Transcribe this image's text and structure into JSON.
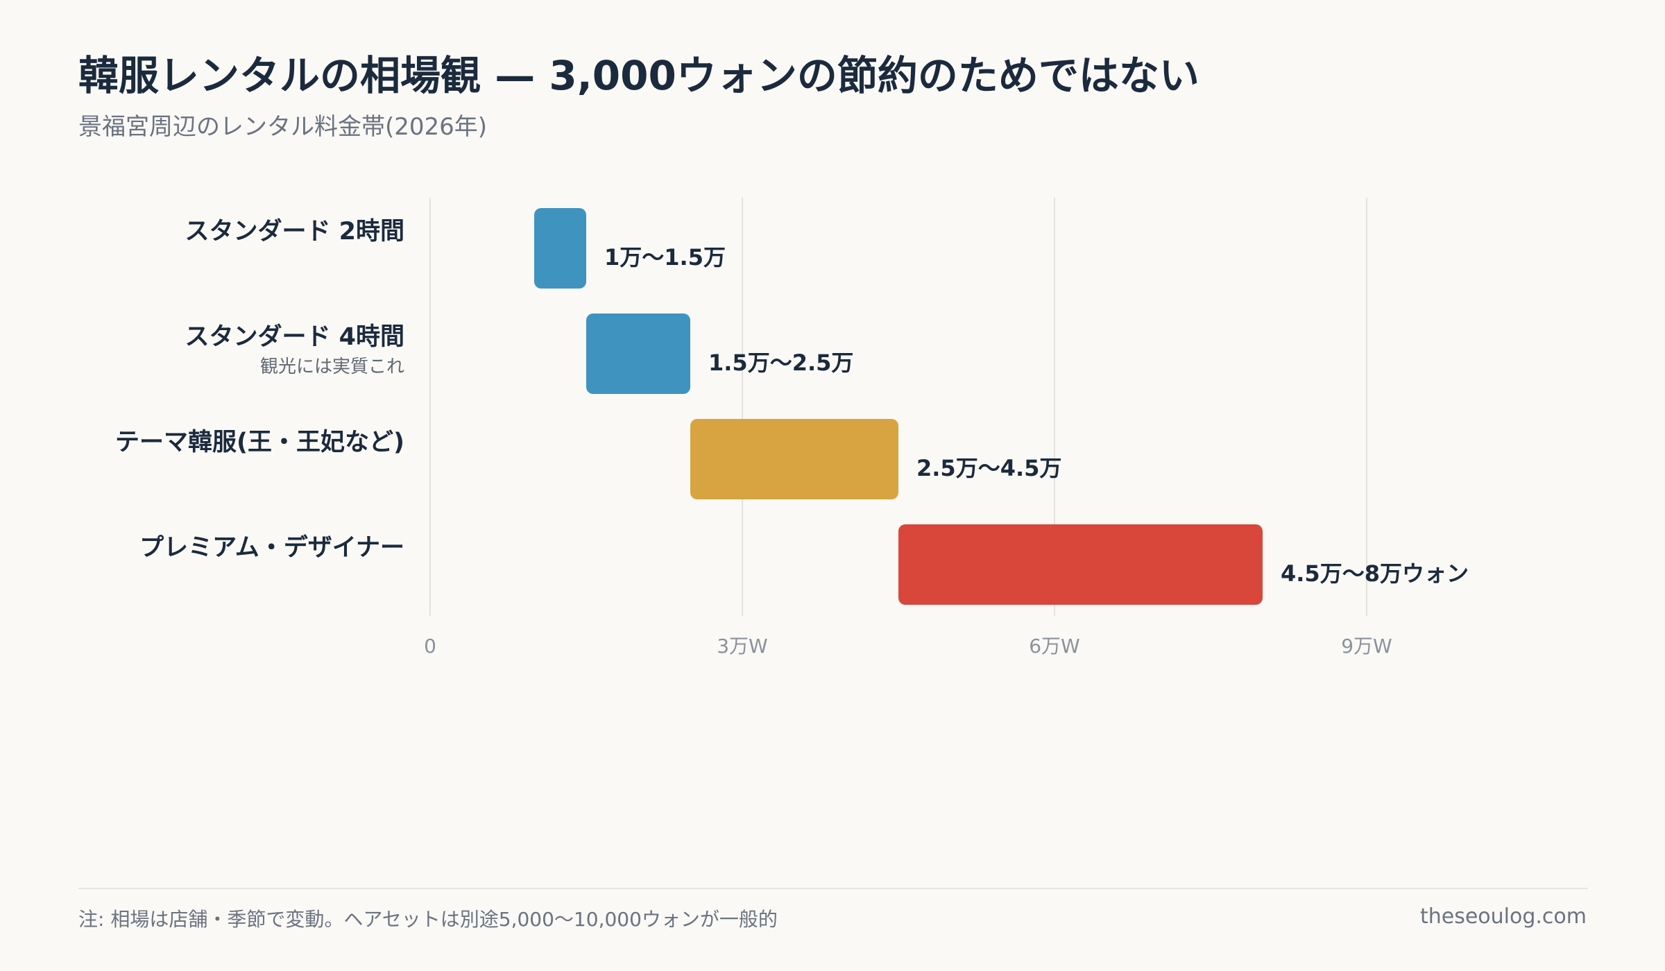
{
  "header": {
    "title": "韓服レンタルの相場観 — 3,000ウォンの節約のためではない",
    "subtitle": "景福宮周辺のレンタル料金帯(2026年)"
  },
  "footer": {
    "note": "注: 相場は店舗・季節で変動。ヘアセットは別途5,000〜10,000ウォンが一般的",
    "source": "theseoulog.com"
  },
  "chart_data": {
    "type": "bar",
    "orientation": "horizontal-range",
    "categories": [
      {
        "label": "スタンダード 2時間",
        "note": ""
      },
      {
        "label": "スタンダード 4時間",
        "note": "観光には実質これ"
      },
      {
        "label": "テーマ韓服(王・王妃など)",
        "note": ""
      },
      {
        "label": "プレミアム・デザイナー",
        "note": ""
      }
    ],
    "ranges": [
      {
        "start": 10000,
        "end": 15000,
        "label": "1万〜1.5万",
        "color": "#3f93bf"
      },
      {
        "start": 15000,
        "end": 25000,
        "label": "1.5万〜2.5万",
        "color": "#3f93bf"
      },
      {
        "start": 25000,
        "end": 45000,
        "label": "2.5万〜4.5万",
        "color": "#d8a441"
      },
      {
        "start": 45000,
        "end": 80000,
        "label": "4.5万〜8万ウォン",
        "color": "#d9473b"
      }
    ],
    "xlim": [
      0,
      100000
    ],
    "xticks": [
      {
        "value": 0,
        "label": "0"
      },
      {
        "value": 30000,
        "label": "3万W"
      },
      {
        "value": 60000,
        "label": "6万W"
      },
      {
        "value": 90000,
        "label": "9万W"
      }
    ],
    "grid": true,
    "legend": "none"
  }
}
